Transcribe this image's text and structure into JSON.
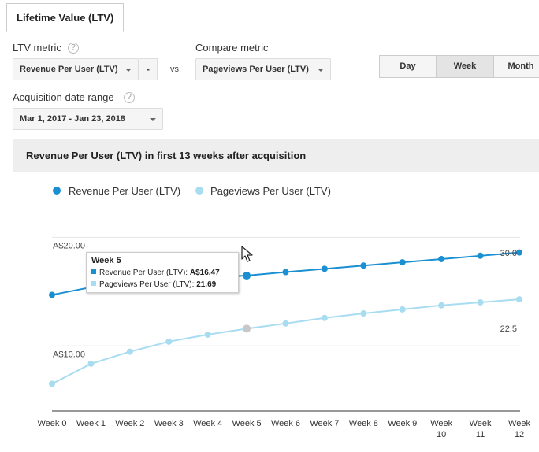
{
  "tab": {
    "label": "Lifetime Value (LTV)"
  },
  "controls": {
    "ltv_metric_label": "LTV metric",
    "ltv_metric_value": "Revenue Per User (LTV)",
    "minus_label": "-",
    "vs_label": "vs.",
    "compare_metric_label": "Compare metric",
    "compare_metric_value": "Pageviews Per User (LTV)",
    "date_range_label": "Acquisition date range",
    "date_range_value": "Mar 1, 2017 - Jan 23, 2018",
    "help_glyph": "?"
  },
  "granularity": {
    "options": [
      "Day",
      "Week",
      "Month"
    ],
    "selected": "Week"
  },
  "colors": {
    "revenue": "#1a8fd1",
    "pageviews": "#a8dcf0",
    "grid": "#e6e6e6"
  },
  "tooltip": {
    "title": "Week 5",
    "revenue_label": "Revenue Per User (LTV):",
    "revenue_value": "A$16.47",
    "pageviews_label": "Pageviews Per User (LTV):",
    "pageviews_value": "21.69"
  },
  "chart_data": {
    "type": "line",
    "title": "Revenue Per User (LTV) in first 13 weeks after acquisition",
    "categories": [
      "Week 0",
      "Week 1",
      "Week 2",
      "Week 3",
      "Week 4",
      "Week 5",
      "Week 6",
      "Week 7",
      "Week 8",
      "Week 9",
      "Week 10",
      "Week 11",
      "Week 12"
    ],
    "series": [
      {
        "name": "Revenue Per User (LTV)",
        "axis": "left",
        "values": [
          14.7,
          15.4,
          15.9,
          16.1,
          16.3,
          16.47,
          16.8,
          17.1,
          17.4,
          17.7,
          18.0,
          18.3,
          18.6
        ]
      },
      {
        "name": "Pageviews Per User (LTV)",
        "axis": "right",
        "values": [
          16.2,
          18.2,
          19.4,
          20.4,
          21.1,
          21.69,
          22.2,
          22.75,
          23.2,
          23.6,
          24.0,
          24.3,
          24.6
        ]
      }
    ],
    "left_axis": {
      "ticks": [
        "A$20.00",
        "A$10.00"
      ],
      "tick_values": [
        20,
        10
      ],
      "range": [
        4,
        23
      ]
    },
    "right_axis": {
      "ticks": [
        "30.0",
        "22.5"
      ],
      "tick_values": [
        30.0,
        22.5
      ],
      "range": [
        13.5,
        34.0
      ]
    },
    "highlighted_index": 5,
    "grid": true
  }
}
